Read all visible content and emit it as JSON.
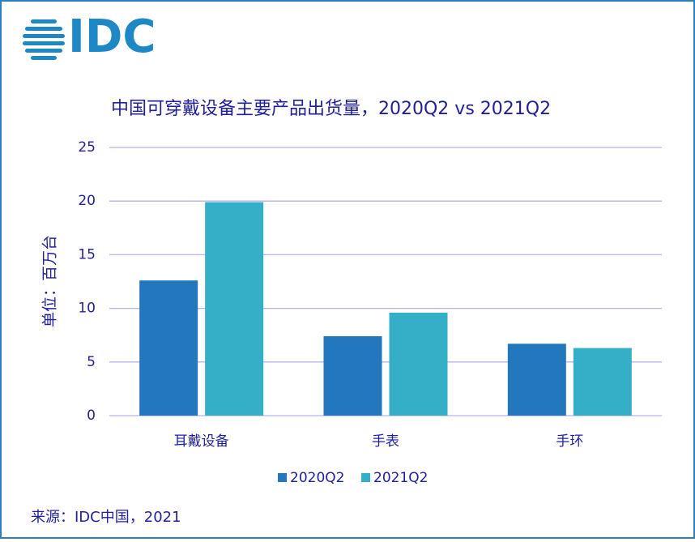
{
  "logo": "IDC",
  "source": "来源：IDC中国，2021",
  "chart_data": {
    "type": "bar",
    "title": "中国可穿戴设备主要产品出货量，2020Q2 vs 2021Q2",
    "y_label": "单位：百万台",
    "categories": [
      "耳戴设备",
      "手表",
      "手环"
    ],
    "series": [
      {
        "name": "2020Q2",
        "color": "#2277bd",
        "values": [
          12.6,
          7.4,
          6.7
        ]
      },
      {
        "name": "2021Q2",
        "color": "#35aec8",
        "values": [
          19.9,
          9.6,
          6.3
        ]
      }
    ],
    "ylim": [
      0,
      25
    ],
    "yticks": [
      0,
      5,
      10,
      15,
      20,
      25
    ],
    "grid": true,
    "legend": "bottom"
  }
}
